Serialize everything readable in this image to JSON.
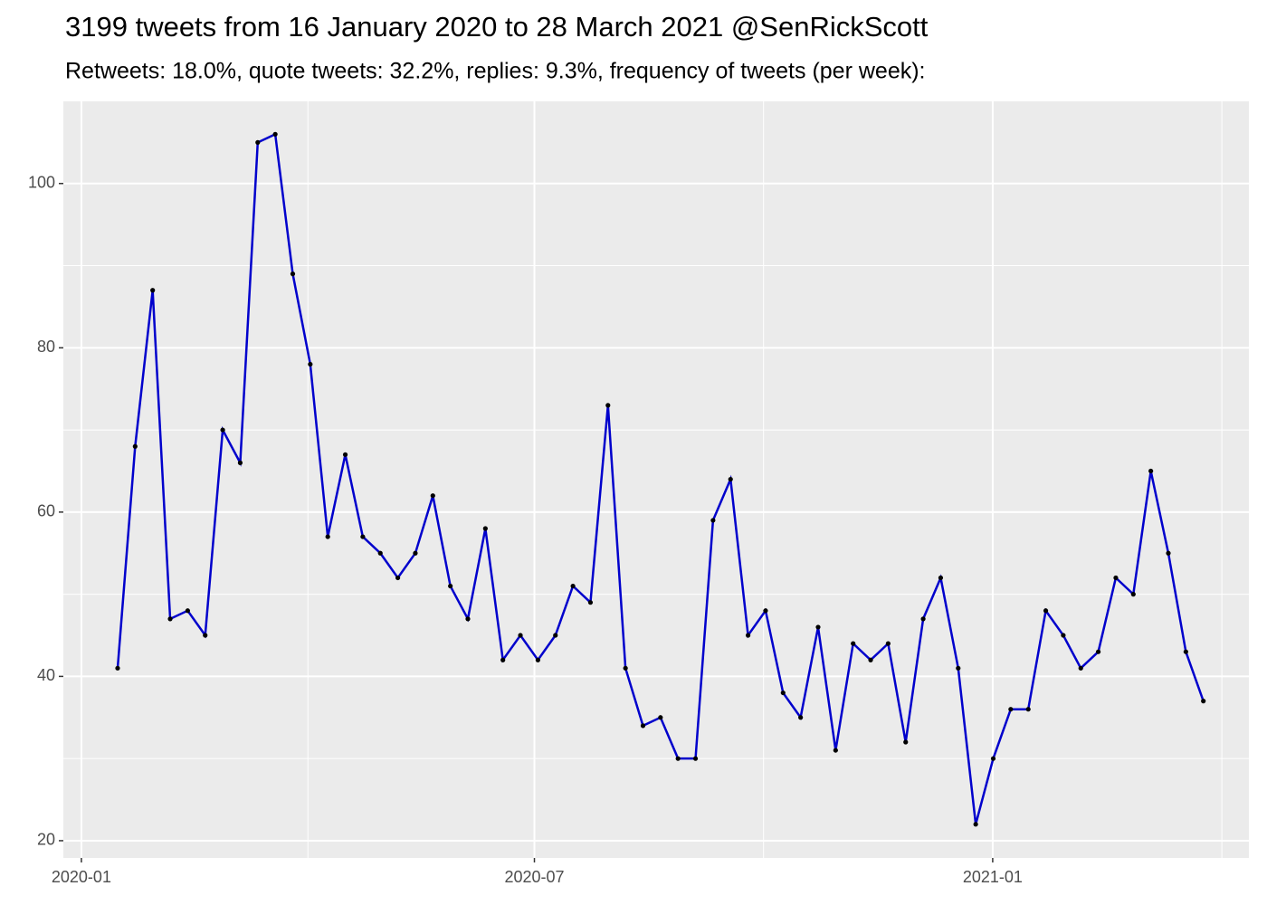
{
  "chart_data": {
    "type": "line",
    "title": "3199 tweets from 16 January 2020 to 28 March 2021 @SenRickScott",
    "subtitle": "Retweets: 18.0%, quote tweets: 32.2%, replies: 9.3%, frequency of tweets (per week):",
    "series": [
      {
        "color": "#0000cc",
        "values": [
          41,
          68,
          87,
          47,
          48,
          45,
          70,
          66,
          105,
          106,
          89,
          78,
          57,
          67,
          57,
          55,
          52,
          55,
          62,
          51,
          47,
          58,
          42,
          45,
          42,
          45,
          51,
          49,
          73,
          41,
          34,
          35,
          30,
          30,
          59,
          64,
          45,
          48,
          38,
          35,
          46,
          31,
          44,
          42,
          44,
          32,
          47,
          52,
          41,
          22,
          30,
          36,
          36,
          48,
          45,
          41,
          43,
          52,
          50,
          65,
          55,
          43,
          37
        ]
      }
    ],
    "xlim": [
      -3.1,
      64.6
    ],
    "xticks": [
      {
        "value": -2.07,
        "label": "2020-01"
      },
      {
        "value": 23.8,
        "label": "2020-07"
      },
      {
        "value": 49.97,
        "label": "2021-01"
      }
    ],
    "ylim": [
      17.9,
      110
    ],
    "yticks": [
      20,
      40,
      60,
      80,
      100
    ],
    "grid": true
  }
}
